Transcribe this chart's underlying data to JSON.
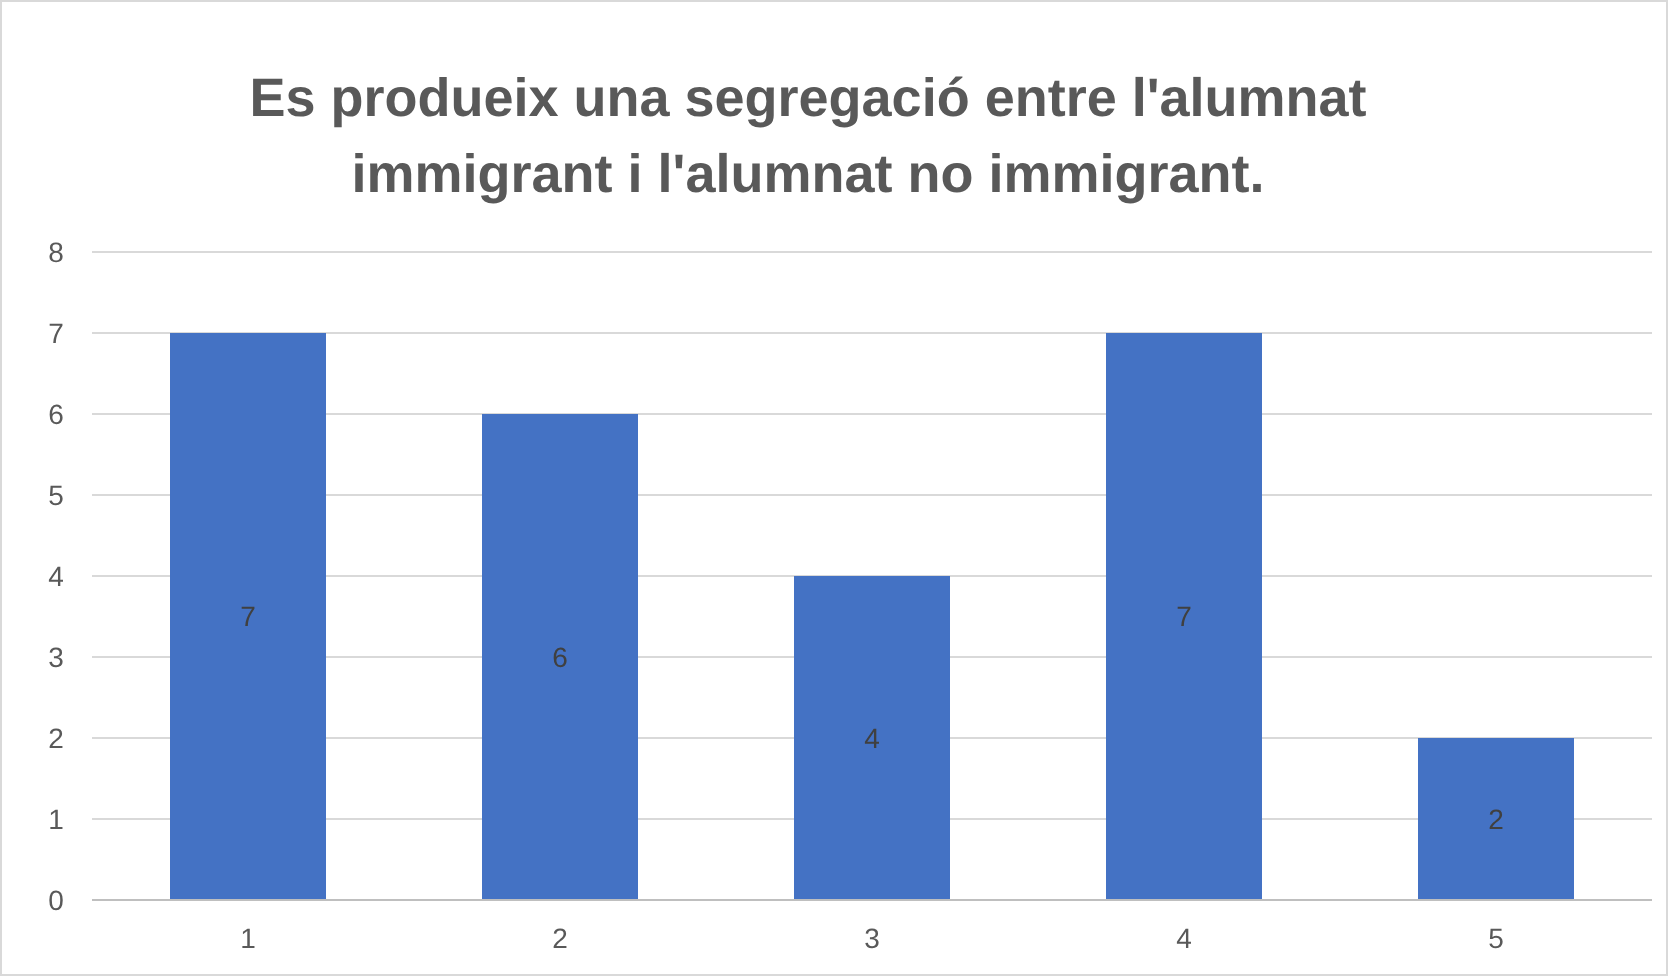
{
  "chart_data": {
    "type": "bar",
    "title": "Es produeix una segregació entre l'alumnat immigrant i l'alumnat no immigrant.",
    "categories": [
      "1",
      "2",
      "3",
      "4",
      "5"
    ],
    "values": [
      7,
      6,
      4,
      7,
      2
    ],
    "color": "#4472c4",
    "ylim": [
      0,
      8
    ],
    "yticks": [
      0,
      1,
      2,
      3,
      4,
      5,
      6,
      7,
      8
    ],
    "grid": "y",
    "data_labels": true
  }
}
